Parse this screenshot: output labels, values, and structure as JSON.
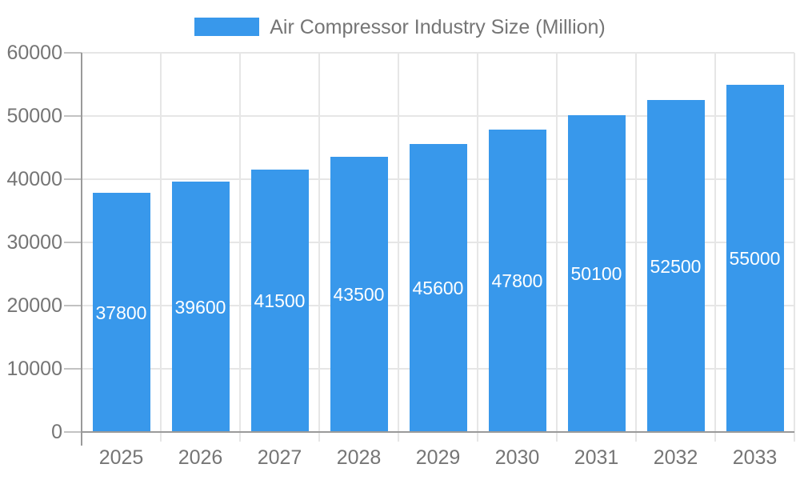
{
  "chart_data": {
    "type": "bar",
    "title": "Air Compressor Industry Size (Million)",
    "legend": {
      "position": "top",
      "entries": [
        "Air Compressor Industry Size (Million)"
      ]
    },
    "categories": [
      "2025",
      "2026",
      "2027",
      "2028",
      "2029",
      "2030",
      "2031",
      "2032",
      "2033"
    ],
    "values": [
      37800,
      39600,
      41500,
      43500,
      45600,
      47800,
      50100,
      52500,
      55000
    ],
    "xlabel": "",
    "ylabel": "",
    "ylim": [
      0,
      60000
    ],
    "yticks": [
      0,
      10000,
      20000,
      30000,
      40000,
      50000,
      60000
    ],
    "grid": true,
    "value_labels_shown": true,
    "colors": {
      "bar": "#3898EB",
      "gridline": "#E6E6E6",
      "axis_line": "#9A9A9A",
      "tick": "#C2C2C2",
      "axis_text": "#757575",
      "value_label_text": "#FFFFFF",
      "background": "#FFFFFF"
    }
  }
}
